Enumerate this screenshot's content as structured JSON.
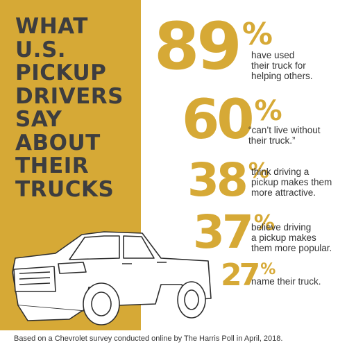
{
  "title_lines": [
    "WHAT",
    "U.S.",
    "PICKUP",
    "DRIVERS",
    "SAY",
    "ABOUT",
    "THEIR",
    "TRUCKS"
  ],
  "stats": [
    {
      "value": 89,
      "unit": "%",
      "lines": [
        "have used",
        "their truck for",
        "helping others."
      ]
    },
    {
      "value": 60,
      "unit": "%",
      "lines": [
        "“can’t live without",
        "their truck.”"
      ]
    },
    {
      "value": 38,
      "unit": "%",
      "lines": [
        "think driving a",
        "pickup makes them",
        "more attractive."
      ]
    },
    {
      "value": 37,
      "unit": "%",
      "lines": [
        "believe driving",
        "a pickup makes",
        "them more popular."
      ]
    },
    {
      "value": 27,
      "unit": "%",
      "lines": [
        "name their truck."
      ]
    }
  ],
  "footnote": "Based on a Chevrolet survey conducted online by The Harris Poll in April, 2018."
}
